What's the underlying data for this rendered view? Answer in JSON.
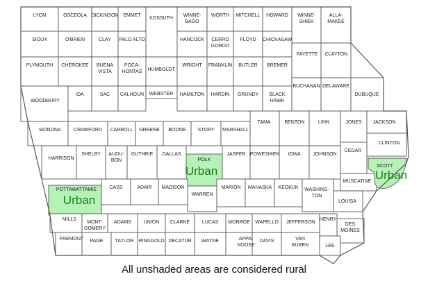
{
  "colors": {
    "urban_fill": "#b6f2b6",
    "urban_text": "#1a7a1a",
    "border": "#555555"
  },
  "counties": {
    "lyon": "LYON",
    "osceola": "OSCEOLA",
    "dickinson": "DICKINSON",
    "emmet": "EMMET",
    "kossuth": "KOSSUTH",
    "winnebago": [
      "WINNE-",
      "BAGO"
    ],
    "worth": "WORTH",
    "mitchell": "MITCHELL",
    "howard": "HOWARD",
    "winneshiek": [
      "WINNE-",
      "SHIEK"
    ],
    "allamakee": [
      "ALLA-",
      "MAKEE"
    ],
    "sioux": "SIOUX",
    "obrien": "O'BRIEN",
    "clay": "CLAY",
    "paloalto": "PALO ALTO",
    "hancock": "HANCOCK",
    "cerrogordo": [
      "CERRO",
      "GORDO"
    ],
    "floyd": "FLOYD",
    "chickasaw": "CHICKASAW",
    "fayette": "FAYETTE",
    "clayton": "CLAYTON",
    "plymouth": "PLYMOUTH",
    "cherokee": "CHEROKEE",
    "buenavista": [
      "BUENA",
      "VISTA"
    ],
    "pocahontas": [
      "POCA-",
      "HONTAS"
    ],
    "humboldt": "HUMBOLDT",
    "wright": "WRIGHT",
    "franklin": "FRANKLIN",
    "butler": "BUTLER",
    "bremer": "BREMER",
    "woodbury": "WOODBURY",
    "ida": "IDA",
    "sac": "SAC",
    "calhoun": "CALHOUN",
    "webster": "WEBSTER",
    "hamilton": "HAMILTON",
    "hardin": "HARDIN",
    "grundy": "GRUNDY",
    "blackhawk": [
      "BLACK",
      "HAWK"
    ],
    "buchanan": "BUCHANAN",
    "delaware": "DELAWARE",
    "dubuque": "DUBUQUE",
    "monona": "MONONA",
    "crawford": "CRAWFORD",
    "carroll": "CARROLL",
    "greene": "GREENE",
    "boone": "BOONE",
    "story": "STORY",
    "marshall": "MARSHALL",
    "tama": "TAMA",
    "benton": "BENTON",
    "linn": "LINN",
    "jones": "JONES",
    "jackson": "JACKSON",
    "clinton": "CLINTON",
    "cedar": "CEDAR",
    "harrison": "HARRISON",
    "shelby": "SHELBY",
    "audubon": [
      "AUDU-",
      "BON"
    ],
    "guthrie": "GUTHRIE",
    "dallas": "DALLAS",
    "polk": "POLK",
    "jasper": "JASPER",
    "poweshiek": "POWESHIEK",
    "iowa": "IOWA",
    "johnson": "JOHNSON",
    "scott": "SCOTT",
    "muscatine": "MUSCATINE",
    "pottawattamie": "POTTAWATTAMIE",
    "cass": "CASS",
    "adair": "ADAIR",
    "madison": "MADISON",
    "warren": "WARREN",
    "marion": "MARION",
    "mahaska": "MAHASKA",
    "keokuk": "KEOKUK",
    "washington": [
      "WASHING-",
      "TON"
    ],
    "louisa": "LOUISA",
    "mills": "MILLS",
    "montgomery": [
      "MONT-",
      "GOMERY"
    ],
    "adams": "ADAMS",
    "union": "UNION",
    "clarke": "CLARKE",
    "lucas": "LUCAS",
    "monroe": "MONROE",
    "wapello": "WAPELLO",
    "jefferson": "JEFFERSON",
    "henry": "HENRY",
    "desmoines": [
      "DES",
      "MOINES"
    ],
    "fremont": "FREMONT",
    "page": "PAGE",
    "taylor": "TAYLOR",
    "ringgold": "RINGGOLD",
    "decatur": "DECATUR",
    "wayne": "WAYNE",
    "appanoose": [
      "APPA-",
      "NOOSE"
    ],
    "davis": "DAVIS",
    "vanburen": [
      "VAN",
      "BUREN"
    ],
    "lee": "LEE"
  },
  "urban_label": "Urban",
  "footnote": "All unshaded areas are considered rural"
}
